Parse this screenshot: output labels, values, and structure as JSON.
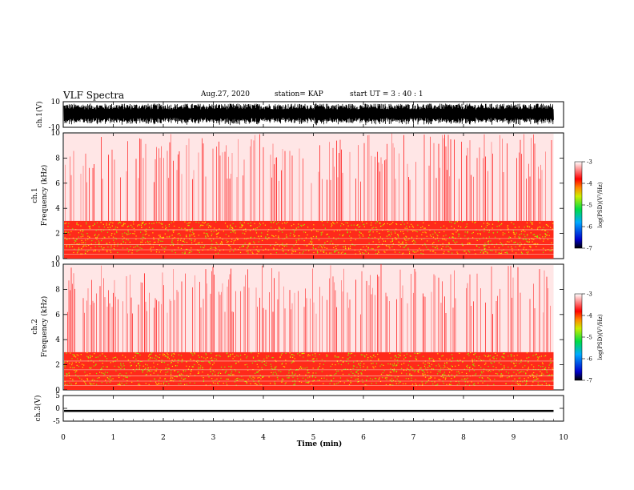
{
  "header": {
    "title": "VLF Spectra",
    "date": "Aug.27, 2020",
    "station": "station= KAP",
    "start_ut": "start  UT =   3 : 40 : 1"
  },
  "chart_data": [
    {
      "type": "line",
      "panel": "ch1-waveform",
      "ylabel": "ch.1(V)",
      "ylim": [
        -10,
        10
      ],
      "yticks": [
        "10",
        "-10"
      ],
      "xlim": [
        0,
        10
      ],
      "description_values": "dense oscillating waveform, amplitude ~ -9 to +9 V, 0 to 9.8 min",
      "color": "#000000"
    },
    {
      "type": "heatmap",
      "panel": "ch1-spectrogram",
      "ylabel_line1": "ch.1",
      "ylabel_line2": "Frequency  (kHz)",
      "ylim": [
        0,
        10
      ],
      "yticks": [
        "0",
        "2",
        "4",
        "6",
        "8",
        "10"
      ],
      "xlim": [
        0,
        10
      ],
      "data_extent_min": 9.8,
      "colorbar": {
        "label": "log(PSD)(V²/Hz)",
        "range": [
          -7,
          -3
        ],
        "ticks": [
          "-3",
          "-4",
          "-5",
          "-6",
          "-7"
        ]
      },
      "low_band_khz": [
        0,
        3
      ],
      "low_band_level": -4.2,
      "high_band_level": -3.6
    },
    {
      "type": "heatmap",
      "panel": "ch2-spectrogram",
      "ylabel_line1": "ch.2",
      "ylabel_line2": "Frequency  (kHz)",
      "ylim": [
        0,
        10
      ],
      "yticks": [
        "0",
        "2",
        "4",
        "6",
        "8",
        "10"
      ],
      "xlim": [
        0,
        10
      ],
      "data_extent_min": 9.8,
      "colorbar": {
        "label": "log(PSD)(V²/Hz)",
        "range": [
          -7,
          -3
        ],
        "ticks": [
          "-3",
          "-4",
          "-5",
          "-6",
          "-7"
        ]
      },
      "low_band_khz": [
        0,
        3
      ],
      "low_band_level": -4.4,
      "high_band_level": -3.6
    },
    {
      "type": "line",
      "panel": "ch3-waveform",
      "ylabel": "ch.3(V)",
      "ylim": [
        -5,
        5
      ],
      "yticks": [
        "5",
        "0",
        "-5"
      ],
      "xlim": [
        0,
        10
      ],
      "description_values": "flat band around -1 V, thickness ~0.8 V, 0 to 9.8 min",
      "color": "#000000"
    }
  ],
  "x_axis": {
    "label": "Time  (min)",
    "ticks": [
      "0",
      "1",
      "2",
      "3",
      "4",
      "5",
      "6",
      "7",
      "8",
      "9",
      "10"
    ]
  },
  "colors": {
    "spectrogram_high": "#ff1a1a",
    "spectrogram_mid": "#ffcc00",
    "spectrogram_low": "#33dd00",
    "background": "#ffffff"
  }
}
